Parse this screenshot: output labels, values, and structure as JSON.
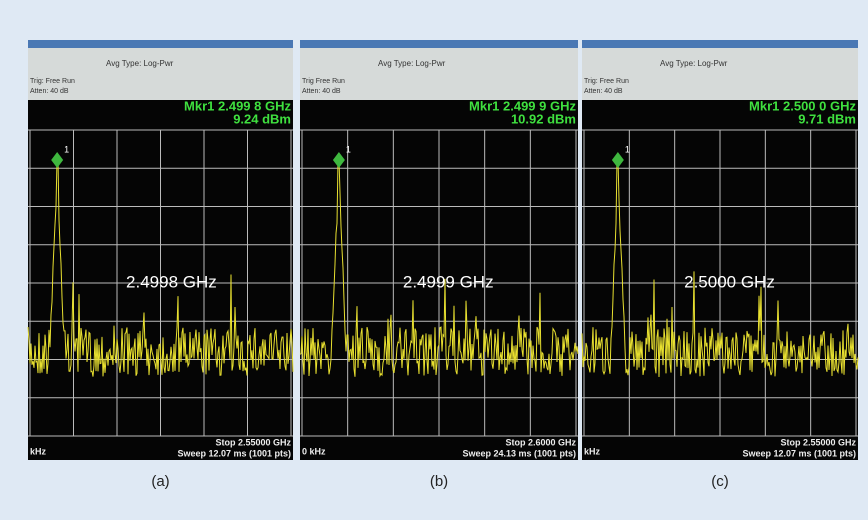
{
  "panels": [
    {
      "avg_type": "Avg Type: Log-Pwr",
      "trig": "Trig: Free Run",
      "atten": "Atten: 40 dB",
      "marker": "Mkr1 2.499 8 GHz",
      "level": "9.24 dBm",
      "marker_id": "1",
      "annotation": "2.4998 GHz",
      "start": "kHz",
      "stop": "Stop 2.55000 GHz",
      "sweep": "Sweep 12.07 ms (1001 pts)",
      "caption": "(a)"
    },
    {
      "avg_type": "Avg Type: Log-Pwr",
      "trig": "Trig Free Run",
      "atten": "Atten: 40 dB",
      "marker": "Mkr1 2.499 9 GHz",
      "level": "10.92 dBm",
      "marker_id": "1",
      "annotation": "2.4999 GHz",
      "start": "0 kHz",
      "stop": "Stop 2.6000 GHz",
      "sweep": "Sweep 24.13 ms (1001 pts)",
      "caption": "(b)"
    },
    {
      "avg_type": "Avg Type: Log-Pwr",
      "trig": "Trig: Free Run",
      "atten": "Atten: 40 dB",
      "marker": "Mkr1 2.500 0 GHz",
      "level": "9.71 dBm",
      "marker_id": "1",
      "annotation": "2.5000 GHz",
      "start": "kHz",
      "stop": "Stop 2.55000 GHz",
      "sweep": "Sweep 12.07 ms (1001 pts)",
      "caption": "(c)"
    }
  ]
}
